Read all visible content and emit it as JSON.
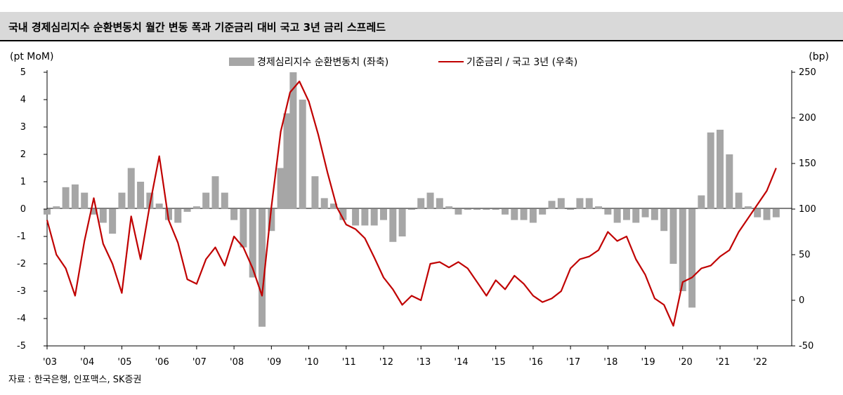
{
  "title": "국내 경제심리지수 순환변동치 월간 변동 폭과 기준금리 대비 국고 3년 금리 스프레드",
  "source": "자료 : 한국은행, 인포맥스, SK증권",
  "colors": {
    "bar": "#a6a6a6",
    "line": "#c00000"
  },
  "chart_data": {
    "type": "bar+line",
    "left_axis": {
      "unit_label": "(pt MoM)",
      "min": -5,
      "max": 5,
      "ticks": [
        "5",
        "4",
        "3",
        "2",
        "1",
        "0",
        "-1",
        "-2",
        "-3",
        "-4",
        "-5"
      ]
    },
    "right_axis": {
      "unit_label": "(bp)",
      "min": -50,
      "max": 250,
      "ticks": [
        "250",
        "200",
        "150",
        "100",
        "50",
        "0",
        "-50"
      ]
    },
    "x_tick_labels": [
      "'03",
      "'04",
      "'05",
      "'06",
      "'07",
      "'08",
      "'09",
      "'10",
      "'11",
      "'12",
      "'13",
      "'14",
      "'15",
      "'16",
      "'17",
      "'18",
      "'19",
      "'20",
      "'21",
      "'22"
    ],
    "series": [
      {
        "name": "경제심리지수 순환변동치 (좌축)",
        "type": "bar",
        "axis": "left",
        "points": [
          [
            "2003-01",
            -0.2
          ],
          [
            "2003-04",
            0.1
          ],
          [
            "2003-07",
            0.8
          ],
          [
            "2003-10",
            0.9
          ],
          [
            "2004-01",
            0.6
          ],
          [
            "2004-04",
            -0.2
          ],
          [
            "2004-07",
            -0.5
          ],
          [
            "2004-10",
            -0.9
          ],
          [
            "2005-01",
            0.6
          ],
          [
            "2005-04",
            1.5
          ],
          [
            "2005-07",
            1.0
          ],
          [
            "2005-10",
            0.6
          ],
          [
            "2006-01",
            0.2
          ],
          [
            "2006-04",
            -0.4
          ],
          [
            "2006-07",
            -0.5
          ],
          [
            "2006-10",
            -0.1
          ],
          [
            "2007-01",
            0.1
          ],
          [
            "2007-04",
            0.6
          ],
          [
            "2007-07",
            1.2
          ],
          [
            "2007-10",
            0.6
          ],
          [
            "2008-01",
            -0.4
          ],
          [
            "2008-04",
            -1.4
          ],
          [
            "2008-07",
            -2.5
          ],
          [
            "2008-10",
            -4.3
          ],
          [
            "2009-01",
            -0.8
          ],
          [
            "2009-04",
            1.5
          ],
          [
            "2009-06",
            3.5
          ],
          [
            "2009-08",
            5.0
          ],
          [
            "2009-11",
            4.0
          ],
          [
            "2010-03",
            1.2
          ],
          [
            "2010-06",
            0.4
          ],
          [
            "2010-09",
            0.2
          ],
          [
            "2010-12",
            -0.4
          ],
          [
            "2011-04",
            -0.6
          ],
          [
            "2011-07",
            -0.6
          ],
          [
            "2011-10",
            -0.6
          ],
          [
            "2012-01",
            -0.4
          ],
          [
            "2012-04",
            -1.2
          ],
          [
            "2012-07",
            -1.0
          ],
          [
            "2012-10",
            0.0
          ],
          [
            "2013-01",
            0.4
          ],
          [
            "2013-04",
            0.6
          ],
          [
            "2013-07",
            0.4
          ],
          [
            "2013-10",
            0.1
          ],
          [
            "2014-01",
            -0.2
          ],
          [
            "2014-04",
            0.0
          ],
          [
            "2014-07",
            0.0
          ],
          [
            "2014-10",
            0.0
          ],
          [
            "2015-01",
            0.0
          ],
          [
            "2015-04",
            -0.2
          ],
          [
            "2015-07",
            -0.4
          ],
          [
            "2015-10",
            -0.4
          ],
          [
            "2016-01",
            -0.5
          ],
          [
            "2016-04",
            -0.2
          ],
          [
            "2016-07",
            0.3
          ],
          [
            "2016-10",
            0.4
          ],
          [
            "2017-01",
            0.0
          ],
          [
            "2017-04",
            0.4
          ],
          [
            "2017-07",
            0.4
          ],
          [
            "2017-10",
            0.1
          ],
          [
            "2018-01",
            -0.2
          ],
          [
            "2018-04",
            -0.5
          ],
          [
            "2018-07",
            -0.4
          ],
          [
            "2018-10",
            -0.5
          ],
          [
            "2019-01",
            -0.3
          ],
          [
            "2019-04",
            -0.4
          ],
          [
            "2019-07",
            -0.8
          ],
          [
            "2019-10",
            -2.0
          ],
          [
            "2020-01",
            -3.0
          ],
          [
            "2020-04",
            -3.6
          ],
          [
            "2020-07",
            0.5
          ],
          [
            "2020-10",
            2.8
          ],
          [
            "2021-01",
            2.9
          ],
          [
            "2021-04",
            2.0
          ],
          [
            "2021-07",
            0.6
          ],
          [
            "2021-10",
            0.1
          ],
          [
            "2022-01",
            -0.3
          ],
          [
            "2022-04",
            -0.4
          ],
          [
            "2022-07",
            -0.3
          ]
        ]
      },
      {
        "name": "기준금리 / 국고 3년 (우축)",
        "type": "line",
        "axis": "right",
        "points": [
          [
            "2003-01",
            88
          ],
          [
            "2003-04",
            50
          ],
          [
            "2003-07",
            35
          ],
          [
            "2003-10",
            5
          ],
          [
            "2004-01",
            65
          ],
          [
            "2004-04",
            112
          ],
          [
            "2004-07",
            62
          ],
          [
            "2004-10",
            40
          ],
          [
            "2005-01",
            8
          ],
          [
            "2005-04",
            92
          ],
          [
            "2005-07",
            45
          ],
          [
            "2005-10",
            105
          ],
          [
            "2006-01",
            158
          ],
          [
            "2006-04",
            88
          ],
          [
            "2006-07",
            63
          ],
          [
            "2006-10",
            23
          ],
          [
            "2007-01",
            18
          ],
          [
            "2007-04",
            45
          ],
          [
            "2007-07",
            58
          ],
          [
            "2007-10",
            38
          ],
          [
            "2008-01",
            70
          ],
          [
            "2008-04",
            58
          ],
          [
            "2008-07",
            35
          ],
          [
            "2008-10",
            5
          ],
          [
            "2009-01",
            102
          ],
          [
            "2009-04",
            185
          ],
          [
            "2009-07",
            228
          ],
          [
            "2009-10",
            240
          ],
          [
            "2010-01",
            218
          ],
          [
            "2010-04",
            182
          ],
          [
            "2010-07",
            140
          ],
          [
            "2010-10",
            102
          ],
          [
            "2011-01",
            83
          ],
          [
            "2011-04",
            78
          ],
          [
            "2011-07",
            68
          ],
          [
            "2011-10",
            47
          ],
          [
            "2012-01",
            25
          ],
          [
            "2012-04",
            12
          ],
          [
            "2012-07",
            -5
          ],
          [
            "2012-10",
            5
          ],
          [
            "2013-01",
            0
          ],
          [
            "2013-04",
            40
          ],
          [
            "2013-07",
            42
          ],
          [
            "2013-10",
            36
          ],
          [
            "2014-01",
            42
          ],
          [
            "2014-04",
            35
          ],
          [
            "2014-07",
            20
          ],
          [
            "2014-10",
            5
          ],
          [
            "2015-01",
            22
          ],
          [
            "2015-04",
            12
          ],
          [
            "2015-07",
            27
          ],
          [
            "2015-10",
            18
          ],
          [
            "2016-01",
            5
          ],
          [
            "2016-04",
            -2
          ],
          [
            "2016-07",
            2
          ],
          [
            "2016-10",
            10
          ],
          [
            "2017-01",
            35
          ],
          [
            "2017-04",
            45
          ],
          [
            "2017-07",
            48
          ],
          [
            "2017-10",
            55
          ],
          [
            "2018-01",
            75
          ],
          [
            "2018-04",
            65
          ],
          [
            "2018-07",
            70
          ],
          [
            "2018-10",
            45
          ],
          [
            "2019-01",
            28
          ],
          [
            "2019-04",
            2
          ],
          [
            "2019-07",
            -5
          ],
          [
            "2019-10",
            -28
          ],
          [
            "2020-01",
            20
          ],
          [
            "2020-04",
            25
          ],
          [
            "2020-07",
            35
          ],
          [
            "2020-10",
            38
          ],
          [
            "2021-01",
            48
          ],
          [
            "2021-04",
            55
          ],
          [
            "2021-07",
            75
          ],
          [
            "2021-10",
            90
          ],
          [
            "2022-01",
            105
          ],
          [
            "2022-04",
            120
          ],
          [
            "2022-07",
            145
          ]
        ]
      }
    ]
  }
}
